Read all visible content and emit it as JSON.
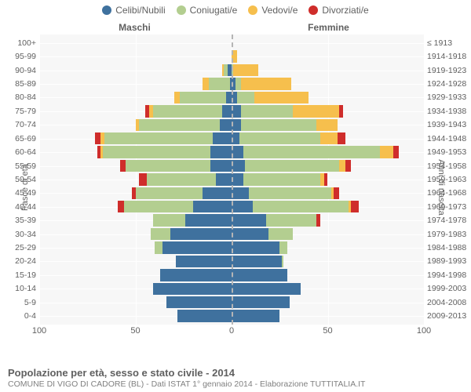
{
  "legend": {
    "items": [
      {
        "label": "Celibi/Nubili",
        "color": "#3f719e"
      },
      {
        "label": "Coniugati/e",
        "color": "#b3ce90"
      },
      {
        "label": "Vedovi/e",
        "color": "#f6bf4d"
      },
      {
        "label": "Divorziati/e",
        "color": "#cf2d2b"
      }
    ]
  },
  "headers": {
    "male": "Maschi",
    "female": "Femmine"
  },
  "ylabels": {
    "left": "Fasce di età",
    "right": "Anni di nascita"
  },
  "xaxis": {
    "max": 100,
    "ticks": [
      100,
      50,
      0,
      50,
      100
    ]
  },
  "colors": {
    "single": "#3f719e",
    "married": "#b3ce90",
    "widowed": "#f6bf4d",
    "divorced": "#cf2d2b",
    "plot_bg": "#f7f7f7",
    "grid": "#ffffff",
    "center": "#b5b5b5",
    "text": "#606060"
  },
  "rows": [
    {
      "age": "100+",
      "year": "≤ 1913",
      "m": {
        "single": 0,
        "married": 0,
        "widowed": 0,
        "divorced": 0
      },
      "f": {
        "single": 0,
        "married": 0,
        "widowed": 0,
        "divorced": 0
      }
    },
    {
      "age": "95-99",
      "year": "1914-1918",
      "m": {
        "single": 0,
        "married": 0,
        "widowed": 0,
        "divorced": 0
      },
      "f": {
        "single": 0,
        "married": 0,
        "widowed": 3,
        "divorced": 0
      }
    },
    {
      "age": "90-94",
      "year": "1919-1923",
      "m": {
        "single": 2,
        "married": 2,
        "widowed": 1,
        "divorced": 0
      },
      "f": {
        "single": 0,
        "married": 1,
        "widowed": 13,
        "divorced": 0
      }
    },
    {
      "age": "85-89",
      "year": "1924-1928",
      "m": {
        "single": 1,
        "married": 11,
        "widowed": 3,
        "divorced": 0
      },
      "f": {
        "single": 2,
        "married": 3,
        "widowed": 26,
        "divorced": 0
      }
    },
    {
      "age": "80-84",
      "year": "1929-1933",
      "m": {
        "single": 3,
        "married": 24,
        "widowed": 3,
        "divorced": 0
      },
      "f": {
        "single": 3,
        "married": 9,
        "widowed": 28,
        "divorced": 0
      }
    },
    {
      "age": "75-79",
      "year": "1934-1938",
      "m": {
        "single": 5,
        "married": 36,
        "widowed": 2,
        "divorced": 2
      },
      "f": {
        "single": 5,
        "married": 27,
        "widowed": 24,
        "divorced": 2
      }
    },
    {
      "age": "70-74",
      "year": "1939-1943",
      "m": {
        "single": 6,
        "married": 42,
        "widowed": 2,
        "divorced": 0
      },
      "f": {
        "single": 5,
        "married": 39,
        "widowed": 11,
        "divorced": 0
      }
    },
    {
      "age": "65-69",
      "year": "1944-1948",
      "m": {
        "single": 10,
        "married": 56,
        "widowed": 2,
        "divorced": 3
      },
      "f": {
        "single": 4,
        "married": 42,
        "widowed": 9,
        "divorced": 4
      }
    },
    {
      "age": "60-64",
      "year": "1949-1953",
      "m": {
        "single": 11,
        "married": 56,
        "widowed": 1,
        "divorced": 2
      },
      "f": {
        "single": 6,
        "married": 71,
        "widowed": 7,
        "divorced": 3
      }
    },
    {
      "age": "55-59",
      "year": "1954-1958",
      "m": {
        "single": 11,
        "married": 44,
        "widowed": 0,
        "divorced": 3
      },
      "f": {
        "single": 7,
        "married": 49,
        "widowed": 3,
        "divorced": 3
      }
    },
    {
      "age": "50-54",
      "year": "1959-1963",
      "m": {
        "single": 8,
        "married": 36,
        "widowed": 0,
        "divorced": 4
      },
      "f": {
        "single": 6,
        "married": 40,
        "widowed": 2,
        "divorced": 2
      }
    },
    {
      "age": "45-49",
      "year": "1964-1968",
      "m": {
        "single": 15,
        "married": 35,
        "widowed": 0,
        "divorced": 2
      },
      "f": {
        "single": 9,
        "married": 43,
        "widowed": 1,
        "divorced": 3
      }
    },
    {
      "age": "40-44",
      "year": "1969-1973",
      "m": {
        "single": 20,
        "married": 36,
        "widowed": 0,
        "divorced": 3
      },
      "f": {
        "single": 11,
        "married": 50,
        "widowed": 1,
        "divorced": 4
      }
    },
    {
      "age": "35-39",
      "year": "1974-1978",
      "m": {
        "single": 24,
        "married": 17,
        "widowed": 0,
        "divorced": 0
      },
      "f": {
        "single": 18,
        "married": 26,
        "widowed": 0,
        "divorced": 2
      }
    },
    {
      "age": "30-34",
      "year": "1979-1983",
      "m": {
        "single": 32,
        "married": 10,
        "widowed": 0,
        "divorced": 0
      },
      "f": {
        "single": 19,
        "married": 13,
        "widowed": 0,
        "divorced": 0
      }
    },
    {
      "age": "25-29",
      "year": "1984-1988",
      "m": {
        "single": 36,
        "married": 4,
        "widowed": 0,
        "divorced": 0
      },
      "f": {
        "single": 25,
        "married": 4,
        "widowed": 0,
        "divorced": 0
      }
    },
    {
      "age": "20-24",
      "year": "1989-1993",
      "m": {
        "single": 29,
        "married": 0,
        "widowed": 0,
        "divorced": 0
      },
      "f": {
        "single": 26,
        "married": 1,
        "widowed": 0,
        "divorced": 0
      }
    },
    {
      "age": "15-19",
      "year": "1994-1998",
      "m": {
        "single": 37,
        "married": 0,
        "widowed": 0,
        "divorced": 0
      },
      "f": {
        "single": 29,
        "married": 0,
        "widowed": 0,
        "divorced": 0
      }
    },
    {
      "age": "10-14",
      "year": "1999-2003",
      "m": {
        "single": 41,
        "married": 0,
        "widowed": 0,
        "divorced": 0
      },
      "f": {
        "single": 36,
        "married": 0,
        "widowed": 0,
        "divorced": 0
      }
    },
    {
      "age": "5-9",
      "year": "2004-2008",
      "m": {
        "single": 34,
        "married": 0,
        "widowed": 0,
        "divorced": 0
      },
      "f": {
        "single": 30,
        "married": 0,
        "widowed": 0,
        "divorced": 0
      }
    },
    {
      "age": "0-4",
      "year": "2009-2013",
      "m": {
        "single": 28,
        "married": 0,
        "widowed": 0,
        "divorced": 0
      },
      "f": {
        "single": 25,
        "married": 0,
        "widowed": 0,
        "divorced": 0
      }
    }
  ],
  "footer": {
    "title": "Popolazione per età, sesso e stato civile - 2014",
    "sub": "COMUNE DI VIGO DI CADORE (BL) - Dati ISTAT 1° gennaio 2014 - Elaborazione TUTTITALIA.IT"
  }
}
